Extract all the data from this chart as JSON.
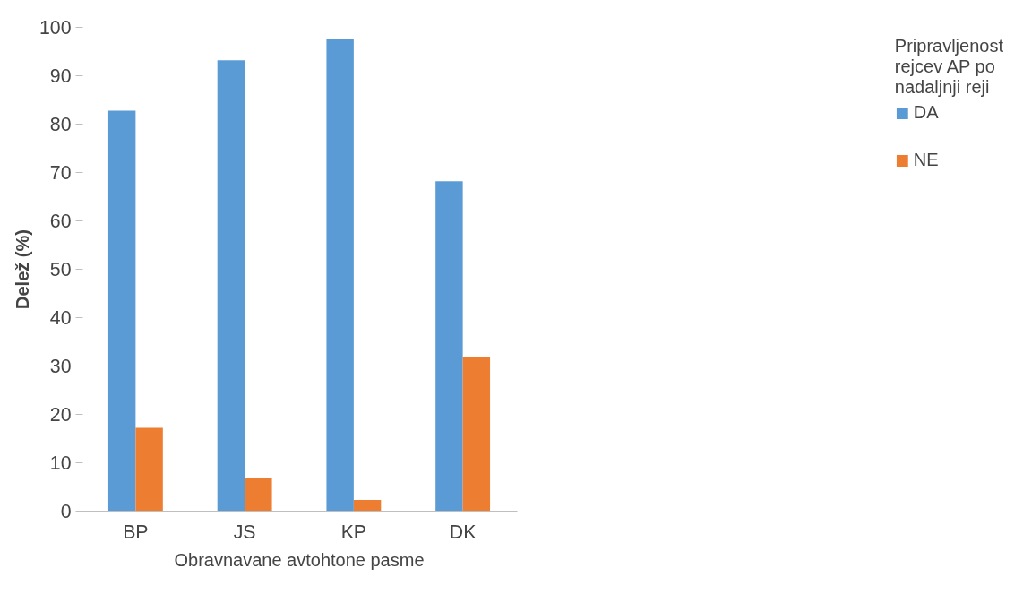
{
  "chart_data": {
    "type": "bar",
    "xlabel": "Obravnavane avtohtone pasme",
    "ylabel": "Delež (%)",
    "legend_title": "Pripravljenost\nrejcev AP po\nnadaljnji reji",
    "categories": [
      "BP",
      "JS",
      "KP",
      "DK"
    ],
    "series": [
      {
        "name": "DA",
        "color": "#5b9bd5",
        "values": [
          82.8,
          93.2,
          97.7,
          68.2
        ]
      },
      {
        "name": "NE",
        "color": "#ed7d31",
        "values": [
          17.2,
          6.8,
          2.3,
          31.8
        ]
      }
    ],
    "ylim": [
      0,
      100
    ],
    "yticks": [
      0,
      10,
      20,
      30,
      40,
      50,
      60,
      70,
      80,
      90,
      100
    ],
    "grid": false,
    "legend": "right"
  }
}
